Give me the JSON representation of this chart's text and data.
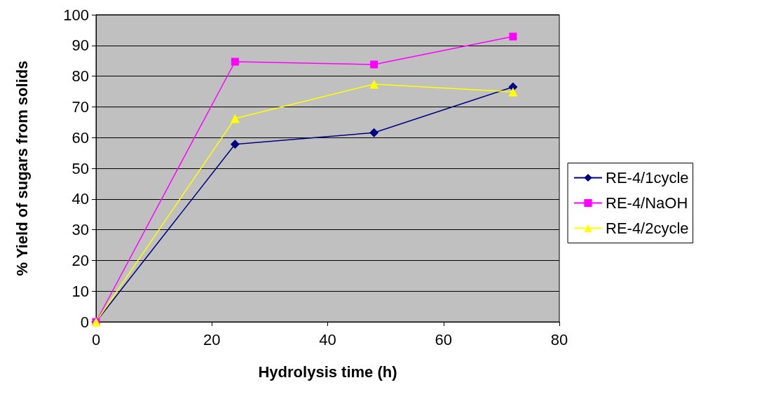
{
  "chart_data": {
    "type": "line",
    "xlabel": "Hydrolysis time (h)",
    "ylabel": "% Yield of sugars from solids",
    "x": [
      0,
      24,
      48,
      72
    ],
    "series": [
      {
        "name": "RE-4/1cycle",
        "color": "#000080",
        "marker": "diamond",
        "values": [
          0,
          57.8,
          61.6,
          76.5
        ]
      },
      {
        "name": "RE-4/NaOH",
        "color": "#ff00ff",
        "marker": "square",
        "values": [
          0,
          84.7,
          83.8,
          92.9
        ]
      },
      {
        "name": "RE-4/2cycle",
        "color": "#ffff00",
        "marker": "triangle",
        "values": [
          0,
          66.2,
          77.4,
          74.9
        ]
      }
    ],
    "xlim": [
      0,
      80
    ],
    "xticks": [
      0,
      20,
      40,
      60,
      80
    ],
    "ylim": [
      0,
      100
    ],
    "yticks": [
      0,
      10,
      20,
      30,
      40,
      50,
      60,
      70,
      80,
      90,
      100
    ],
    "grid": "y",
    "legend": "right"
  }
}
